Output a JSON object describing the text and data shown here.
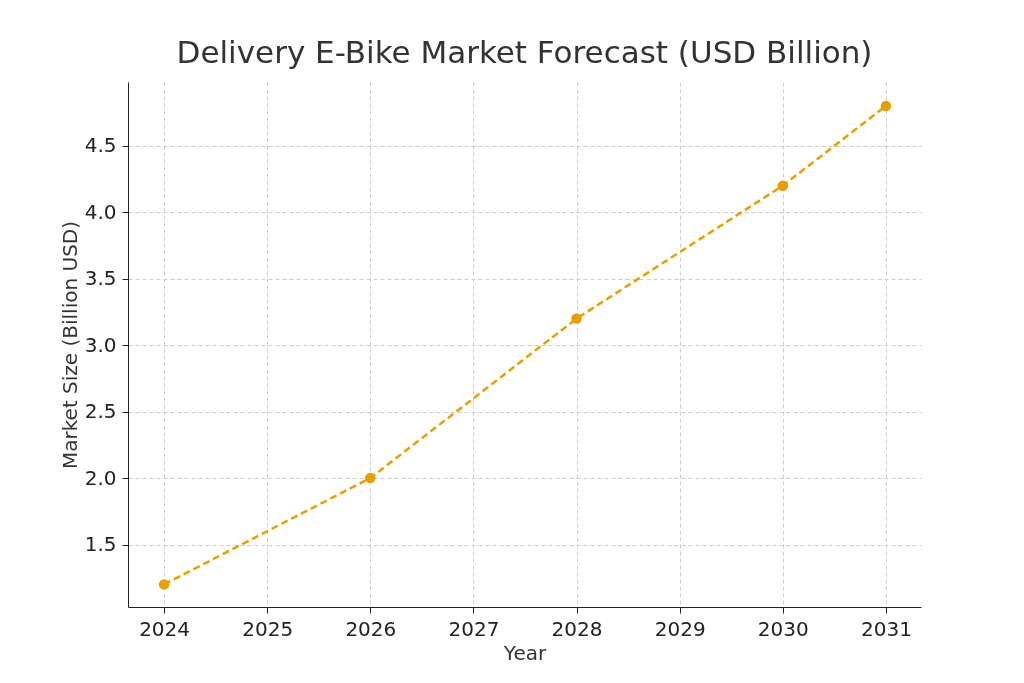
{
  "chart_data": {
    "type": "line",
    "title": "Delivery E-Bike Market Forecast (USD Billion)",
    "xlabel": "Year",
    "ylabel": "Market Size (Billion USD)",
    "x": [
      2024,
      2026,
      2028,
      2030,
      2031
    ],
    "series": [
      {
        "color": "#e69f00",
        "values": [
          1.2,
          2.0,
          3.2,
          4.2,
          4.8
        ]
      }
    ],
    "xlim": [
      2023.65,
      2031.34
    ],
    "xticks": [
      2024,
      2025,
      2026,
      2027,
      2028,
      2029,
      2030,
      2031
    ],
    "ylim": [
      1.03,
      4.98
    ],
    "yticks": [
      1.5,
      {
        "value": 2,
        "label": "2.0"
      },
      2.5,
      {
        "value": 3,
        "label": "3.0"
      },
      3.5,
      {
        "value": 4,
        "label": "4.0"
      },
      4.5
    ],
    "grid": true,
    "marker": "circle",
    "line_style": "dashed"
  }
}
